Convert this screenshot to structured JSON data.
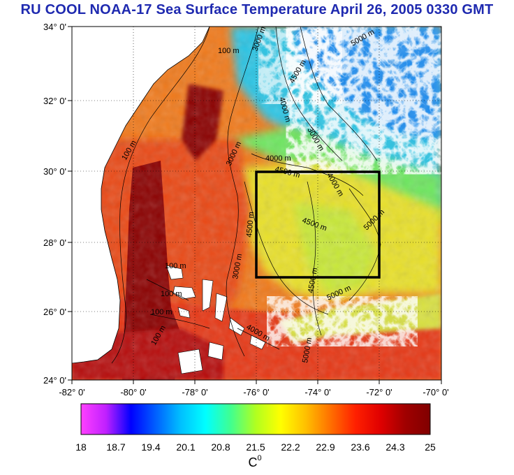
{
  "title": "RU COOL  NOAA-17 Sea Surface Temperature April 26, 2005 0330 GMT",
  "lat_ticks": [
    "34° 0'",
    "32° 0'",
    "30° 0'",
    "28° 0'",
    "26° 0'",
    "24° 0'"
  ],
  "lon_ticks": [
    "-82° 0'",
    "-80° 0'",
    "-78° 0'",
    "-76° 0'",
    "-74° 0'",
    "-72° 0'",
    "-70° 0'"
  ],
  "contour_labels": [
    "100 m",
    "3000 m",
    "4000 m",
    "4500 m",
    "5000 m",
    "3000 m",
    "3000 m",
    "100 m",
    "4000 m",
    "4500 m",
    "4000 m",
    "4500 m",
    "5000 m",
    "4500 m",
    "5000 m",
    "100 m",
    "100 m",
    "100 m",
    "100 m",
    "3000 m",
    "4000 m",
    "4500 m",
    "5000 m"
  ],
  "colorbar": {
    "ticks": [
      "18",
      "18.7",
      "19.4",
      "20.1",
      "20.8",
      "21.5",
      "22.2",
      "22.9",
      "23.6",
      "24.3",
      "25"
    ],
    "unit_base": "C",
    "unit_sup": "0",
    "colors": [
      "#ff40ff",
      "#c020ff",
      "#0000ff",
      "#0060ff",
      "#00c0ff",
      "#00ffff",
      "#40ff90",
      "#b0ff20",
      "#ffff00",
      "#ffc000",
      "#ff7000",
      "#ff2000",
      "#e00000",
      "#a00000",
      "#800000"
    ]
  },
  "colors": {
    "land": "#ffffff",
    "gulf_stream": "#8b0000",
    "warm": "#e23a14",
    "orange": "#f48a1e",
    "yellow": "#e8e02a",
    "cool": "#22c6e0",
    "cloud": "#ffffff",
    "title": "#1f2ab0"
  }
}
